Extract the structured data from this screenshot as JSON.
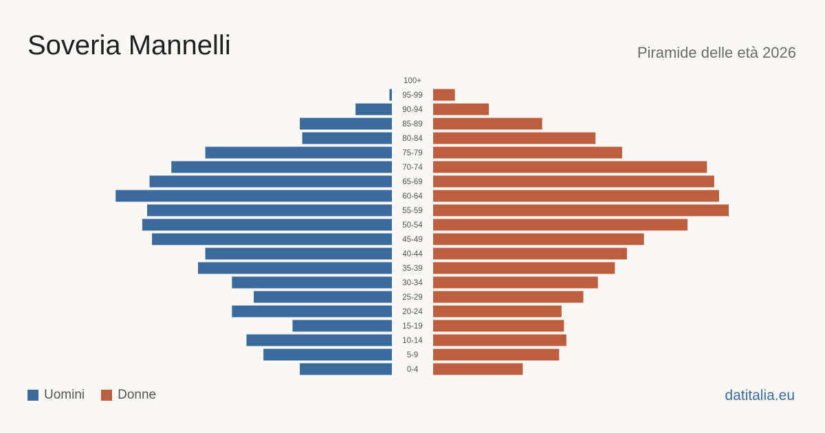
{
  "header": {
    "title": "Soveria Mannelli",
    "subtitle": "Piramide delle età 2026"
  },
  "legend": {
    "male_label": "Uomini",
    "female_label": "Donne"
  },
  "footer": {
    "source": "datitalia.eu"
  },
  "colors": {
    "male": "#3b6a9c",
    "female": "#bc5f3e"
  },
  "chart_data": {
    "type": "bar",
    "orientation": "horizontal-mirrored",
    "title": "Soveria Mannelli",
    "subtitle": "Piramide delle età 2026",
    "categories": [
      "100+",
      "95-99",
      "90-94",
      "85-89",
      "80-84",
      "75-79",
      "70-74",
      "65-69",
      "60-64",
      "55-59",
      "50-54",
      "45-49",
      "40-44",
      "35-39",
      "30-34",
      "25-29",
      "20-24",
      "15-19",
      "10-14",
      "5-9",
      "0-4"
    ],
    "series": [
      {
        "name": "Uomini",
        "values": [
          0,
          1,
          15,
          38,
          37,
          77,
          91,
          100,
          114,
          101,
          103,
          99,
          77,
          80,
          66,
          57,
          66,
          41,
          60,
          53,
          38
        ]
      },
      {
        "name": "Donne",
        "values": [
          0,
          9,
          23,
          45,
          67,
          78,
          113,
          116,
          118,
          122,
          105,
          87,
          80,
          75,
          68,
          62,
          53,
          54,
          55,
          52,
          37
        ]
      }
    ],
    "xlim": [
      0,
      122
    ],
    "grid": false,
    "legend_position": "bottom-left"
  }
}
